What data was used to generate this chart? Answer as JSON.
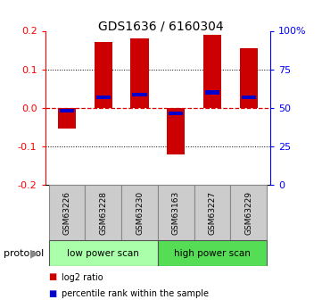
{
  "title": "GDS1636 / 6160304",
  "samples": [
    "GSM63226",
    "GSM63228",
    "GSM63230",
    "GSM63163",
    "GSM63227",
    "GSM63229"
  ],
  "log2_ratio": [
    -0.055,
    0.17,
    0.18,
    -0.12,
    0.19,
    0.155
  ],
  "percentile_rank": [
    48.0,
    57.0,
    58.5,
    46.5,
    60.0,
    57.0
  ],
  "ylim_left": [
    -0.2,
    0.2
  ],
  "ylim_right": [
    0,
    100
  ],
  "yticks_left": [
    -0.2,
    -0.1,
    0.0,
    0.1,
    0.2
  ],
  "yticks_right": [
    0,
    25,
    50,
    75,
    100
  ],
  "yticklabels_right": [
    "0",
    "25",
    "50",
    "75",
    "100%"
  ],
  "bar_color": "#cc0000",
  "percentile_color": "#0000cc",
  "protocol_groups": [
    {
      "label": "low power scan",
      "samples": [
        0,
        1,
        2
      ],
      "color": "#aaffaa"
    },
    {
      "label": "high power scan",
      "samples": [
        3,
        4,
        5
      ],
      "color": "#55dd55"
    }
  ],
  "protocol_label": "protocol",
  "legend_items": [
    {
      "color": "#cc0000",
      "label": "log2 ratio"
    },
    {
      "color": "#0000cc",
      "label": "percentile rank within the sample"
    }
  ],
  "dashed_zero_color": "#dd0000",
  "bar_width": 0.5,
  "percentile_bar_width": 0.4,
  "percentile_bar_height": 0.01
}
